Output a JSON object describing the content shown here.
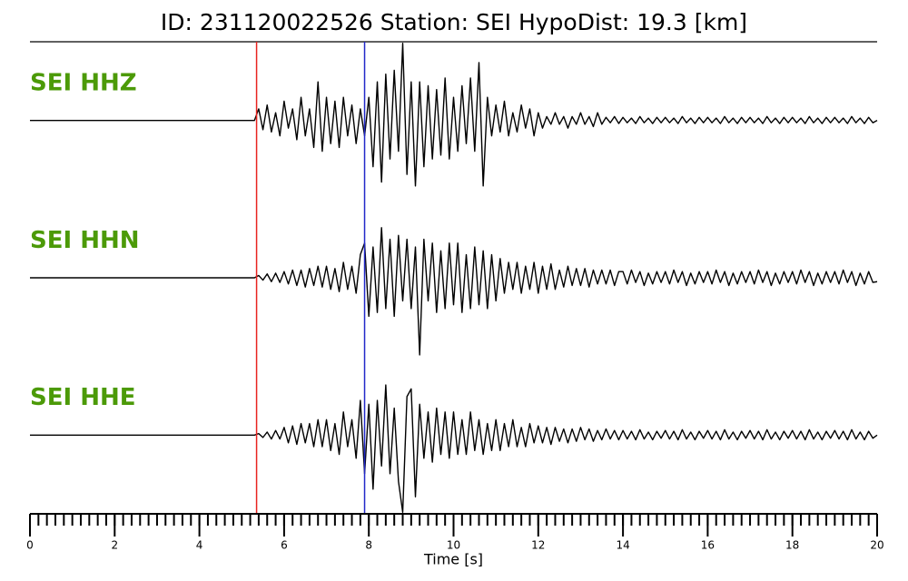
{
  "chart_data": {
    "type": "line",
    "title": "ID: 231120022526   Station: SEI   HypoDist:    19.3 [km]",
    "xlabel": "Time [s]",
    "xlim": [
      0,
      20
    ],
    "xticks": [
      0,
      2,
      4,
      6,
      8,
      10,
      12,
      14,
      16,
      18,
      20
    ],
    "xminor_interval": 0.2,
    "ylim": [
      -1,
      1
    ],
    "label_color": "#4c9a08",
    "markers": [
      {
        "x": 5.35,
        "color": "#e8231f"
      },
      {
        "x": 7.9,
        "color": "#2228c8"
      }
    ],
    "x": [
      0,
      0.1,
      0.2,
      0.3,
      0.4,
      0.5,
      0.6,
      0.7,
      0.8,
      0.9,
      1,
      1.1,
      1.2,
      1.3,
      1.4,
      1.5,
      1.6,
      1.7,
      1.8,
      1.9,
      2,
      2.1,
      2.2,
      2.3,
      2.4,
      2.5,
      2.6,
      2.7,
      2.8,
      2.9,
      3,
      3.1,
      3.2,
      3.3,
      3.4,
      3.5,
      3.6,
      3.7,
      3.8,
      3.9,
      4,
      4.1,
      4.2,
      4.3,
      4.4,
      4.5,
      4.6,
      4.7,
      4.8,
      4.9,
      5,
      5.1,
      5.2,
      5.3,
      5.4,
      5.5,
      5.6,
      5.7,
      5.8,
      5.9,
      6,
      6.1,
      6.2,
      6.3,
      6.4,
      6.5,
      6.6,
      6.7,
      6.8,
      6.9,
      7,
      7.1,
      7.2,
      7.3,
      7.4,
      7.5,
      7.6,
      7.7,
      7.8,
      7.9,
      8,
      8.1,
      8.2,
      8.3,
      8.4,
      8.5,
      8.6,
      8.7,
      8.8,
      8.9,
      9,
      9.1,
      9.2,
      9.3,
      9.4,
      9.5,
      9.6,
      9.7,
      9.8,
      9.9,
      10,
      10.1,
      10.2,
      10.3,
      10.4,
      10.5,
      10.6,
      10.7,
      10.8,
      10.9,
      11,
      11.1,
      11.2,
      11.3,
      11.4,
      11.5,
      11.6,
      11.7,
      11.8,
      11.9,
      12,
      12.1,
      12.2,
      12.3,
      12.4,
      12.5,
      12.6,
      12.7,
      12.8,
      12.9,
      13,
      13.1,
      13.2,
      13.3,
      13.4,
      13.5,
      13.6,
      13.7,
      13.8,
      13.9,
      14,
      14.1,
      14.2,
      14.3,
      14.4,
      14.5,
      14.6,
      14.7,
      14.8,
      14.9,
      15,
      15.1,
      15.2,
      15.3,
      15.4,
      15.5,
      15.6,
      15.7,
      15.8,
      15.9,
      16,
      16.1,
      16.2,
      16.3,
      16.4,
      16.5,
      16.6,
      16.7,
      16.8,
      16.9,
      17,
      17.1,
      17.2,
      17.3,
      17.4,
      17.5,
      17.6,
      17.7,
      17.8,
      17.9,
      18,
      18.1,
      18.2,
      18.3,
      18.4,
      18.5,
      18.6,
      18.7,
      18.8,
      18.9,
      19,
      19.1,
      19.2,
      19.3,
      19.4,
      19.5,
      19.6,
      19.7,
      19.8,
      19.9,
      20
    ],
    "series": [
      {
        "name": "SEI HHZ",
        "color": "#000000",
        "values": [
          0,
          0,
          0,
          0,
          0,
          0,
          0,
          0,
          0,
          0,
          0,
          0,
          0,
          0,
          0,
          0,
          0,
          0,
          0,
          0,
          0,
          0,
          0,
          0,
          0,
          0,
          0,
          0,
          0,
          0,
          0,
          0,
          0,
          0,
          0,
          0,
          0,
          0,
          0,
          0,
          0,
          0,
          0,
          0,
          0,
          0,
          0,
          0,
          0,
          0,
          0,
          0,
          0,
          0,
          0.15,
          -0.12,
          0.2,
          -0.15,
          0.1,
          -0.2,
          0.25,
          -0.1,
          0.15,
          -0.25,
          0.3,
          -0.2,
          0.15,
          -0.35,
          0.5,
          -0.4,
          0.3,
          -0.3,
          0.25,
          -0.35,
          0.3,
          -0.2,
          0.2,
          -0.3,
          0.15,
          -0.2,
          0.3,
          -0.6,
          0.5,
          -0.8,
          0.6,
          -0.5,
          0.65,
          -0.4,
          1.0,
          -0.7,
          0.5,
          -0.85,
          0.5,
          -0.6,
          0.45,
          -0.5,
          0.4,
          -0.45,
          0.55,
          -0.5,
          0.3,
          -0.4,
          0.45,
          -0.3,
          0.55,
          -0.4,
          0.75,
          -0.85,
          0.3,
          -0.2,
          0.2,
          -0.15,
          0.25,
          -0.2,
          0.1,
          -0.15,
          0.2,
          -0.1,
          0.15,
          -0.2,
          0.1,
          -0.1,
          0.05,
          -0.05,
          0.1,
          -0.05,
          0.05,
          -0.1,
          0.05,
          -0.05,
          0.1,
          -0.05,
          0.05,
          -0.08,
          0.1,
          -0.05,
          0.04,
          -0.03,
          0.05,
          -0.04,
          0.04,
          -0.03,
          0.03,
          -0.04,
          0.05,
          -0.03,
          0.03,
          -0.04,
          0.04,
          -0.03,
          0.04,
          -0.03,
          0.03,
          -0.04,
          0.05,
          -0.03,
          0.03,
          -0.04,
          0.04,
          -0.03,
          0.04,
          -0.03,
          0.03,
          -0.04,
          0.05,
          -0.03,
          0.03,
          -0.04,
          0.04,
          -0.03,
          0.04,
          -0.03,
          0.03,
          -0.04,
          0.05,
          -0.03,
          0.03,
          -0.04,
          0.04,
          -0.03,
          0.04,
          -0.03,
          0.03,
          -0.04,
          0.05,
          -0.03,
          0.03,
          -0.04,
          0.04,
          -0.03,
          0.04,
          -0.03,
          0.03,
          -0.04,
          0.05,
          -0.03,
          0.03,
          -0.04,
          0.04,
          -0.03,
          0
        ]
      },
      {
        "name": "SEI HHN",
        "color": "#000000",
        "values": [
          0,
          0,
          0,
          0,
          0,
          0,
          0,
          0,
          0,
          0,
          0,
          0,
          0,
          0,
          0,
          0,
          0,
          0,
          0,
          0,
          0,
          0,
          0,
          0,
          0,
          0,
          0,
          0,
          0,
          0,
          0,
          0,
          0,
          0,
          0,
          0,
          0,
          0,
          0,
          0,
          0,
          0,
          0,
          0,
          0,
          0,
          0,
          0,
          0,
          0,
          0,
          0,
          0,
          0,
          0.03,
          -0.03,
          0.05,
          -0.05,
          0.06,
          -0.06,
          0.08,
          -0.08,
          0.1,
          -0.1,
          0.1,
          -0.12,
          0.12,
          -0.1,
          0.15,
          -0.12,
          0.15,
          -0.15,
          0.12,
          -0.18,
          0.2,
          -0.15,
          0.15,
          -0.2,
          0.3,
          0.45,
          -0.5,
          0.4,
          -0.45,
          0.65,
          -0.4,
          0.5,
          -0.5,
          0.55,
          -0.3,
          0.5,
          -0.4,
          0.4,
          -1.0,
          0.5,
          -0.3,
          0.45,
          -0.45,
          0.35,
          -0.4,
          0.45,
          -0.35,
          0.45,
          -0.45,
          0.3,
          -0.4,
          0.4,
          -0.35,
          0.35,
          -0.4,
          0.3,
          -0.3,
          0.25,
          -0.2,
          0.2,
          -0.15,
          0.2,
          -0.2,
          0.15,
          -0.15,
          0.2,
          -0.2,
          0.15,
          -0.15,
          0.18,
          -0.15,
          0.1,
          -0.12,
          0.15,
          -0.1,
          0.12,
          -0.1,
          0.12,
          -0.12,
          0.1,
          -0.08,
          0.1,
          -0.08,
          0.1,
          -0.1,
          0.08,
          0.08,
          -0.08,
          0.1,
          -0.06,
          0.08,
          -0.1,
          0.06,
          -0.08,
          0.08,
          -0.06,
          0.08,
          -0.08,
          0.1,
          -0.06,
          0.08,
          -0.1,
          0.06,
          -0.08,
          0.08,
          -0.06,
          0.08,
          -0.08,
          0.1,
          -0.06,
          0.08,
          -0.1,
          0.06,
          -0.08,
          0.08,
          -0.06,
          0.08,
          -0.08,
          0.1,
          -0.06,
          0.08,
          -0.1,
          0.06,
          -0.08,
          0.08,
          -0.06,
          0.08,
          -0.08,
          0.1,
          -0.06,
          0.08,
          -0.1,
          0.06,
          -0.08,
          0.08,
          -0.06,
          0.08,
          -0.08,
          0.1,
          -0.06,
          0.08,
          -0.1,
          0.06,
          -0.08,
          0.08,
          -0.06,
          -0.05
        ]
      },
      {
        "name": "SEI HHE",
        "color": "#000000",
        "values": [
          0,
          0,
          0,
          0,
          0,
          0,
          0,
          0,
          0,
          0,
          0,
          0,
          0,
          0,
          0,
          0,
          0,
          0,
          0,
          0,
          0,
          0,
          0,
          0,
          0,
          0,
          0,
          0,
          0,
          0,
          0,
          0,
          0,
          0,
          0,
          0,
          0,
          0,
          0,
          0,
          0,
          0,
          0,
          0,
          0,
          0,
          0,
          0,
          0,
          0,
          0,
          0,
          0,
          0,
          0.02,
          -0.03,
          0.04,
          -0.05,
          0.06,
          -0.05,
          0.1,
          -0.1,
          0.12,
          -0.12,
          0.15,
          -0.1,
          0.15,
          -0.15,
          0.2,
          -0.15,
          0.2,
          -0.2,
          0.15,
          -0.25,
          0.3,
          -0.15,
          0.2,
          -0.3,
          0.45,
          -0.5,
          0.4,
          -0.7,
          0.45,
          -0.4,
          0.65,
          -0.5,
          0.35,
          -0.6,
          -1.0,
          0.5,
          0.6,
          -0.8,
          0.4,
          -0.3,
          0.3,
          -0.35,
          0.35,
          -0.25,
          0.3,
          -0.3,
          0.3,
          -0.25,
          0.2,
          -0.25,
          0.3,
          -0.2,
          0.2,
          -0.25,
          0.15,
          -0.2,
          0.2,
          -0.2,
          0.15,
          -0.15,
          0.2,
          -0.15,
          0.1,
          -0.15,
          0.15,
          -0.1,
          0.12,
          -0.1,
          0.1,
          -0.12,
          0.1,
          -0.08,
          0.08,
          -0.1,
          0.08,
          -0.08,
          0.1,
          -0.06,
          0.08,
          -0.08,
          0.06,
          -0.06,
          0.08,
          -0.05,
          0.06,
          -0.06,
          0.06,
          -0.05,
          0.05,
          -0.06,
          0.07,
          -0.05,
          0.04,
          -0.06,
          0.05,
          -0.04,
          0.06,
          -0.05,
          0.05,
          -0.06,
          0.07,
          -0.05,
          0.04,
          -0.06,
          0.05,
          -0.04,
          0.06,
          -0.05,
          0.05,
          -0.06,
          0.07,
          -0.05,
          0.04,
          -0.06,
          0.05,
          -0.04,
          0.06,
          -0.05,
          0.05,
          -0.06,
          0.07,
          -0.05,
          0.04,
          -0.06,
          0.05,
          -0.04,
          0.06,
          -0.05,
          0.05,
          -0.06,
          0.07,
          -0.05,
          0.04,
          -0.06,
          0.05,
          -0.04,
          0.06,
          -0.05,
          0.05,
          -0.06,
          0.07,
          -0.05,
          0.04,
          -0.06,
          0.05,
          -0.04,
          0
        ]
      }
    ]
  }
}
